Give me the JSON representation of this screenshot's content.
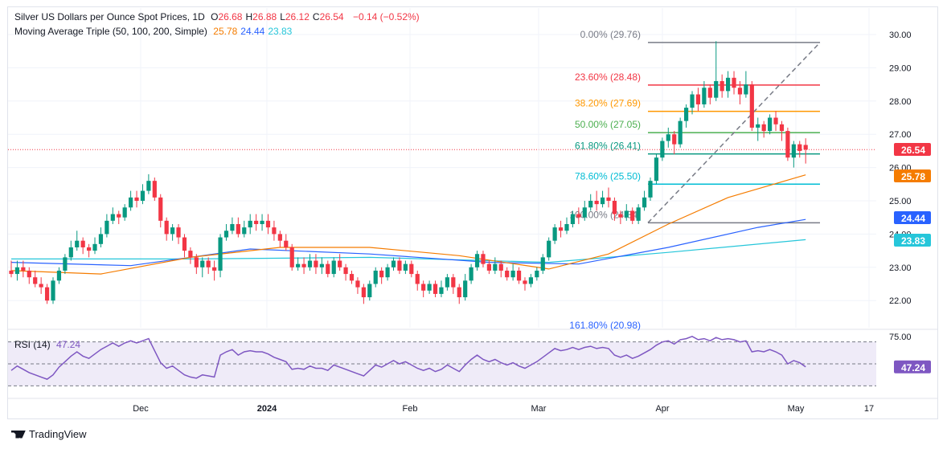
{
  "legend": {
    "symbol": "Silver US Dollars per Ounce Spot Prices, 1D",
    "ohlc": [
      {
        "label": "O",
        "value": "26.68"
      },
      {
        "label": "H",
        "value": "26.88"
      },
      {
        "label": "L",
        "value": "26.12"
      },
      {
        "label": "C",
        "value": "26.54"
      }
    ],
    "change": "−0.14 (−0.52%)",
    "ma_title": "Moving Average Triple (50, 100, 200, Simple)",
    "ma_values": [
      {
        "value": "25.78",
        "color": "#f57c00"
      },
      {
        "value": "24.44",
        "color": "#2962ff"
      },
      {
        "value": "23.83",
        "color": "#26c6da"
      }
    ],
    "rsi_title": "RSI (14)",
    "rsi_value": "47.24"
  },
  "brand": "TradingView",
  "colors": {
    "up": "#089981",
    "down": "#f23645",
    "ma50": "#f57c00",
    "ma100": "#2962ff",
    "ma200": "#26c6da",
    "rsi": "#7e57c2"
  },
  "chart_data": {
    "type": "candlestick",
    "y_ticks": [
      "30.00",
      "29.00",
      "28.00",
      "27.00",
      "26.00",
      "25.00",
      "24.00",
      "23.00",
      "22.00"
    ],
    "ylim": [
      21.3,
      30.5
    ],
    "x_ticks": [
      "Dec",
      "2024",
      "Feb",
      "Mar",
      "Apr",
      "May",
      "17"
    ],
    "last_price": "26.54",
    "price_labels": [
      {
        "value": "26.54",
        "color": "#f23645"
      },
      {
        "value": "25.78",
        "color": "#f57c00"
      },
      {
        "value": "24.44",
        "color": "#2962ff"
      },
      {
        "value": "23.83",
        "color": "#26c6da"
      }
    ],
    "fibonacci": [
      {
        "label": "0.00% (29.76)",
        "price": 29.76,
        "color": "#787b86"
      },
      {
        "label": "23.60% (28.48)",
        "price": 28.48,
        "color": "#f23645"
      },
      {
        "label": "38.20% (27.69)",
        "price": 27.69,
        "color": "#ff9800"
      },
      {
        "label": "50.00% (27.05)",
        "price": 27.05,
        "color": "#4caf50"
      },
      {
        "label": "61.80% (26.41)",
        "price": 26.41,
        "color": "#089981"
      },
      {
        "label": "78.60% (25.50)",
        "price": 25.5,
        "color": "#00bcd4"
      },
      {
        "label": "100.00% (24.34)",
        "price": 24.34,
        "color": "#787b86"
      },
      {
        "label": "161.80% (20.98)",
        "price": 20.98,
        "color": "#2962ff"
      }
    ],
    "candles": [
      [
        22.9,
        22.8,
        23.2,
        22.7
      ],
      [
        22.8,
        23.0,
        23.2,
        22.6
      ],
      [
        23.0,
        22.9,
        23.2,
        22.7
      ],
      [
        22.9,
        22.7,
        23.0,
        22.5
      ],
      [
        22.7,
        22.5,
        22.9,
        22.4
      ],
      [
        22.5,
        22.4,
        22.7,
        22.2
      ],
      [
        22.4,
        22.0,
        22.5,
        21.9
      ],
      [
        22.0,
        22.6,
        22.7,
        21.9
      ],
      [
        22.6,
        22.9,
        23.0,
        22.5
      ],
      [
        22.9,
        23.3,
        23.4,
        22.8
      ],
      [
        23.3,
        23.6,
        23.8,
        23.2
      ],
      [
        23.6,
        23.8,
        24.1,
        23.5
      ],
      [
        23.8,
        23.6,
        23.9,
        23.4
      ],
      [
        23.6,
        23.5,
        23.7,
        23.3
      ],
      [
        23.5,
        23.7,
        23.9,
        23.4
      ],
      [
        23.7,
        24.0,
        24.2,
        23.6
      ],
      [
        24.0,
        24.4,
        24.6,
        23.9
      ],
      [
        24.4,
        24.6,
        24.8,
        24.3
      ],
      [
        24.6,
        24.5,
        24.7,
        24.3
      ],
      [
        24.5,
        24.8,
        24.9,
        24.4
      ],
      [
        24.8,
        25.1,
        25.3,
        24.7
      ],
      [
        25.1,
        25.0,
        25.3,
        24.8
      ],
      [
        25.0,
        25.3,
        25.5,
        24.9
      ],
      [
        25.3,
        25.6,
        25.8,
        25.2
      ],
      [
        25.6,
        25.1,
        25.7,
        25.0
      ],
      [
        25.1,
        24.4,
        25.2,
        24.2
      ],
      [
        24.4,
        24.0,
        24.5,
        23.8
      ],
      [
        24.0,
        24.2,
        24.3,
        23.8
      ],
      [
        24.2,
        23.9,
        24.3,
        23.7
      ],
      [
        23.9,
        23.5,
        24.0,
        23.3
      ],
      [
        23.5,
        23.3,
        23.6,
        23.1
      ],
      [
        23.3,
        23.0,
        23.4,
        22.8
      ],
      [
        23.0,
        23.2,
        23.3,
        22.7
      ],
      [
        23.2,
        23.0,
        23.3,
        22.8
      ],
      [
        23.0,
        22.9,
        23.2,
        22.6
      ],
      [
        22.9,
        23.9,
        24.0,
        22.7
      ],
      [
        23.9,
        24.1,
        24.3,
        23.8
      ],
      [
        24.1,
        24.3,
        24.5,
        24.0
      ],
      [
        24.3,
        24.0,
        24.5,
        23.9
      ],
      [
        24.0,
        24.2,
        24.4,
        23.9
      ],
      [
        24.2,
        24.4,
        24.6,
        24.0
      ],
      [
        24.4,
        24.3,
        24.6,
        24.1
      ],
      [
        24.3,
        24.4,
        24.6,
        24.1
      ],
      [
        24.4,
        24.2,
        24.6,
        24.0
      ],
      [
        24.2,
        24.0,
        24.4,
        23.8
      ],
      [
        24.0,
        23.8,
        24.1,
        23.6
      ],
      [
        23.8,
        23.6,
        24.0,
        23.5
      ],
      [
        23.6,
        23.0,
        23.7,
        22.9
      ],
      [
        23.0,
        23.1,
        23.3,
        22.9
      ],
      [
        23.1,
        23.0,
        23.3,
        22.8
      ],
      [
        23.0,
        23.2,
        23.4,
        22.9
      ],
      [
        23.2,
        23.0,
        23.4,
        22.8
      ],
      [
        23.0,
        23.1,
        23.3,
        22.8
      ],
      [
        23.1,
        22.8,
        23.2,
        22.7
      ],
      [
        22.8,
        23.2,
        23.3,
        22.7
      ],
      [
        23.2,
        23.0,
        23.4,
        22.9
      ],
      [
        23.0,
        22.8,
        23.1,
        22.6
      ],
      [
        22.8,
        22.6,
        22.9,
        22.5
      ],
      [
        22.6,
        22.4,
        22.7,
        22.2
      ],
      [
        22.4,
        22.1,
        22.5,
        21.9
      ],
      [
        22.1,
        22.5,
        22.6,
        22.0
      ],
      [
        22.5,
        22.9,
        23.0,
        22.4
      ],
      [
        22.9,
        22.7,
        23.0,
        22.5
      ],
      [
        22.7,
        23.0,
        23.1,
        22.6
      ],
      [
        23.0,
        23.2,
        23.3,
        22.9
      ],
      [
        23.2,
        22.9,
        23.3,
        22.8
      ],
      [
        22.9,
        23.1,
        23.2,
        22.8
      ],
      [
        23.1,
        22.8,
        23.2,
        22.7
      ],
      [
        22.8,
        22.5,
        22.9,
        22.3
      ],
      [
        22.5,
        22.3,
        22.6,
        22.1
      ],
      [
        22.3,
        22.5,
        22.6,
        22.2
      ],
      [
        22.5,
        22.2,
        22.6,
        22.1
      ],
      [
        22.2,
        22.4,
        22.6,
        22.1
      ],
      [
        22.4,
        22.7,
        22.8,
        22.3
      ],
      [
        22.7,
        22.4,
        22.8,
        22.2
      ],
      [
        22.4,
        22.1,
        22.5,
        21.9
      ],
      [
        22.1,
        22.6,
        22.8,
        22.0
      ],
      [
        22.6,
        23.0,
        23.1,
        22.5
      ],
      [
        23.0,
        23.4,
        23.5,
        22.9
      ],
      [
        23.4,
        23.1,
        23.5,
        23.0
      ],
      [
        23.1,
        22.9,
        23.2,
        22.8
      ],
      [
        22.9,
        23.1,
        23.3,
        22.8
      ],
      [
        23.1,
        22.9,
        23.2,
        22.7
      ],
      [
        22.9,
        22.7,
        23.0,
        22.6
      ],
      [
        22.7,
        22.9,
        23.1,
        22.6
      ],
      [
        22.9,
        22.6,
        23.0,
        22.5
      ],
      [
        22.6,
        22.5,
        22.7,
        22.3
      ],
      [
        22.5,
        22.7,
        22.8,
        22.4
      ],
      [
        22.7,
        22.9,
        23.0,
        22.6
      ],
      [
        22.9,
        23.3,
        23.4,
        22.8
      ],
      [
        23.3,
        23.8,
        23.9,
        23.2
      ],
      [
        23.8,
        24.2,
        24.3,
        23.7
      ],
      [
        24.2,
        24.1,
        24.4,
        23.9
      ],
      [
        24.1,
        24.3,
        24.5,
        24.0
      ],
      [
        24.3,
        24.6,
        24.7,
        24.2
      ],
      [
        24.6,
        24.5,
        24.8,
        24.3
      ],
      [
        24.5,
        24.8,
        25.0,
        24.4
      ],
      [
        24.8,
        25.0,
        25.2,
        24.7
      ],
      [
        25.0,
        24.9,
        25.3,
        24.7
      ],
      [
        24.9,
        25.1,
        25.3,
        24.8
      ],
      [
        25.1,
        25.0,
        25.4,
        24.8
      ],
      [
        25.0,
        24.6,
        25.1,
        24.4
      ],
      [
        24.6,
        24.5,
        24.7,
        24.3
      ],
      [
        24.5,
        24.7,
        24.9,
        24.4
      ],
      [
        24.7,
        24.4,
        24.8,
        24.3
      ],
      [
        24.4,
        24.8,
        24.9,
        24.3
      ],
      [
        24.8,
        25.1,
        25.3,
        24.7
      ],
      [
        25.1,
        25.6,
        25.7,
        25.0
      ],
      [
        25.6,
        26.3,
        26.4,
        25.5
      ],
      [
        26.3,
        26.8,
        26.9,
        26.2
      ],
      [
        26.8,
        27.0,
        27.2,
        26.6
      ],
      [
        27.0,
        26.7,
        27.1,
        26.4
      ],
      [
        26.7,
        27.4,
        27.5,
        26.6
      ],
      [
        27.4,
        27.8,
        27.9,
        27.2
      ],
      [
        27.8,
        28.2,
        28.3,
        27.6
      ],
      [
        28.2,
        27.9,
        28.4,
        27.7
      ],
      [
        27.9,
        28.4,
        28.6,
        27.8
      ],
      [
        28.4,
        28.1,
        28.5,
        27.9
      ],
      [
        28.1,
        28.6,
        29.8,
        28.0
      ],
      [
        28.6,
        28.3,
        28.8,
        28.1
      ],
      [
        28.3,
        28.7,
        28.9,
        28.1
      ],
      [
        28.7,
        28.4,
        28.9,
        28.2
      ],
      [
        28.4,
        28.2,
        28.6,
        27.9
      ],
      [
        28.2,
        28.5,
        28.9,
        28.1
      ],
      [
        28.5,
        27.2,
        28.6,
        27.1
      ],
      [
        27.2,
        27.3,
        27.5,
        26.8
      ],
      [
        27.3,
        27.1,
        27.4,
        26.9
      ],
      [
        27.1,
        27.5,
        27.6,
        27.0
      ],
      [
        27.5,
        27.3,
        27.7,
        27.1
      ],
      [
        27.3,
        27.1,
        27.4,
        26.8
      ],
      [
        27.1,
        26.3,
        27.2,
        26.2
      ],
      [
        26.3,
        26.7,
        26.8,
        26.0
      ],
      [
        26.7,
        26.5,
        26.8,
        26.3
      ],
      [
        26.68,
        26.54,
        26.88,
        26.12
      ]
    ],
    "ma50": [
      [
        0,
        22.9
      ],
      [
        15,
        22.8
      ],
      [
        30,
        23.3
      ],
      [
        45,
        23.6
      ],
      [
        60,
        23.6
      ],
      [
        75,
        23.35
      ],
      [
        90,
        22.95
      ],
      [
        100,
        23.4
      ],
      [
        110,
        24.3
      ],
      [
        120,
        25.1
      ],
      [
        133,
        25.78
      ]
    ],
    "ma100": [
      [
        0,
        23.15
      ],
      [
        20,
        23.05
      ],
      [
        40,
        23.55
      ],
      [
        60,
        23.4
      ],
      [
        80,
        23.15
      ],
      [
        95,
        23.1
      ],
      [
        110,
        23.6
      ],
      [
        125,
        24.2
      ],
      [
        133,
        24.44
      ]
    ],
    "ma200": [
      [
        0,
        23.25
      ],
      [
        30,
        23.25
      ],
      [
        60,
        23.3
      ],
      [
        90,
        23.15
      ],
      [
        110,
        23.45
      ],
      [
        133,
        23.83
      ]
    ],
    "rsi": {
      "ticks": [
        "75.00"
      ],
      "ylim": [
        20,
        80
      ],
      "values": [
        44,
        48,
        45,
        42,
        40,
        38,
        36,
        40,
        47,
        52,
        57,
        61,
        57,
        55,
        59,
        63,
        66,
        69,
        66,
        69,
        71,
        69,
        71,
        73,
        62,
        51,
        46,
        48,
        44,
        40,
        38,
        37,
        40,
        39,
        38,
        58,
        61,
        63,
        58,
        61,
        62,
        61,
        61,
        59,
        56,
        54,
        52,
        45,
        46,
        45,
        48,
        46,
        46,
        44,
        49,
        47,
        45,
        43,
        41,
        39,
        44,
        49,
        47,
        50,
        53,
        50,
        52,
        49,
        46,
        44,
        46,
        43,
        45,
        49,
        46,
        43,
        49,
        54,
        58,
        54,
        52,
        54,
        51,
        49,
        51,
        48,
        46,
        49,
        52,
        56,
        60,
        64,
        62,
        63,
        65,
        63,
        65,
        66,
        64,
        65,
        64,
        58,
        56,
        58,
        55,
        57,
        60,
        63,
        67,
        70,
        71,
        68,
        72,
        73,
        75,
        72,
        73,
        71,
        74,
        72,
        73,
        72,
        70,
        71,
        61,
        62,
        61,
        63,
        61,
        58,
        50,
        53,
        51,
        47.24
      ]
    }
  }
}
